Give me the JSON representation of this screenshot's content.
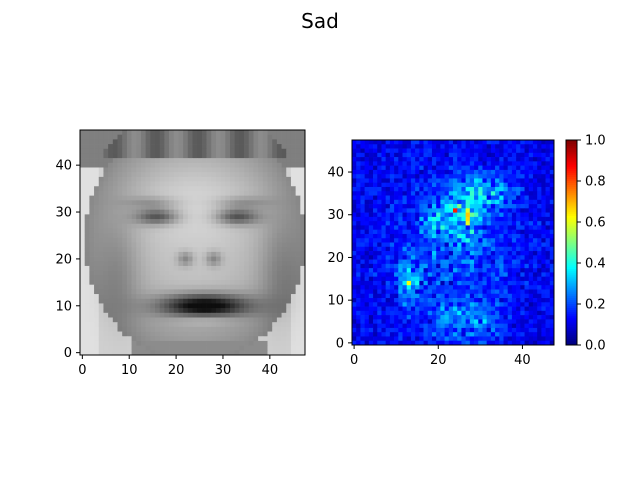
{
  "figure": {
    "title": "Sad"
  },
  "chart_data": [
    {
      "type": "image",
      "panel": "left",
      "title": "",
      "colormap": "gray",
      "image_size": [
        48,
        48
      ],
      "xlabel": "",
      "ylabel": "",
      "xlim": [
        -0.5,
        47.5
      ],
      "ylim": [
        47.5,
        -0.5
      ],
      "xticks": [
        0,
        10,
        20,
        30,
        40
      ],
      "yticks": [
        0,
        10,
        20,
        30,
        40
      ],
      "xtick_labels": [
        "0",
        "10",
        "20",
        "30",
        "40"
      ],
      "ytick_labels": [
        "0",
        "10",
        "20",
        "30",
        "40"
      ]
    },
    {
      "type": "heatmap",
      "panel": "right",
      "title": "",
      "colormap": "jet",
      "image_size": [
        48,
        48
      ],
      "xlabel": "",
      "ylabel": "",
      "xlim": [
        -0.5,
        47.5
      ],
      "ylim": [
        47.5,
        -0.5
      ],
      "xticks": [
        0,
        20,
        40
      ],
      "yticks": [
        0,
        10,
        20,
        30,
        40
      ],
      "xtick_labels": [
        "0",
        "20",
        "40"
      ],
      "ytick_labels": [
        "0",
        "10",
        "20",
        "30",
        "40"
      ],
      "colorbar": {
        "range": [
          0.0,
          1.0
        ],
        "ticks": [
          0.0,
          0.2,
          0.4,
          0.6,
          0.8,
          1.0
        ],
        "tick_labels": [
          "0.0",
          "0.2",
          "0.4",
          "0.6",
          "0.8",
          "1.0"
        ]
      }
    }
  ]
}
